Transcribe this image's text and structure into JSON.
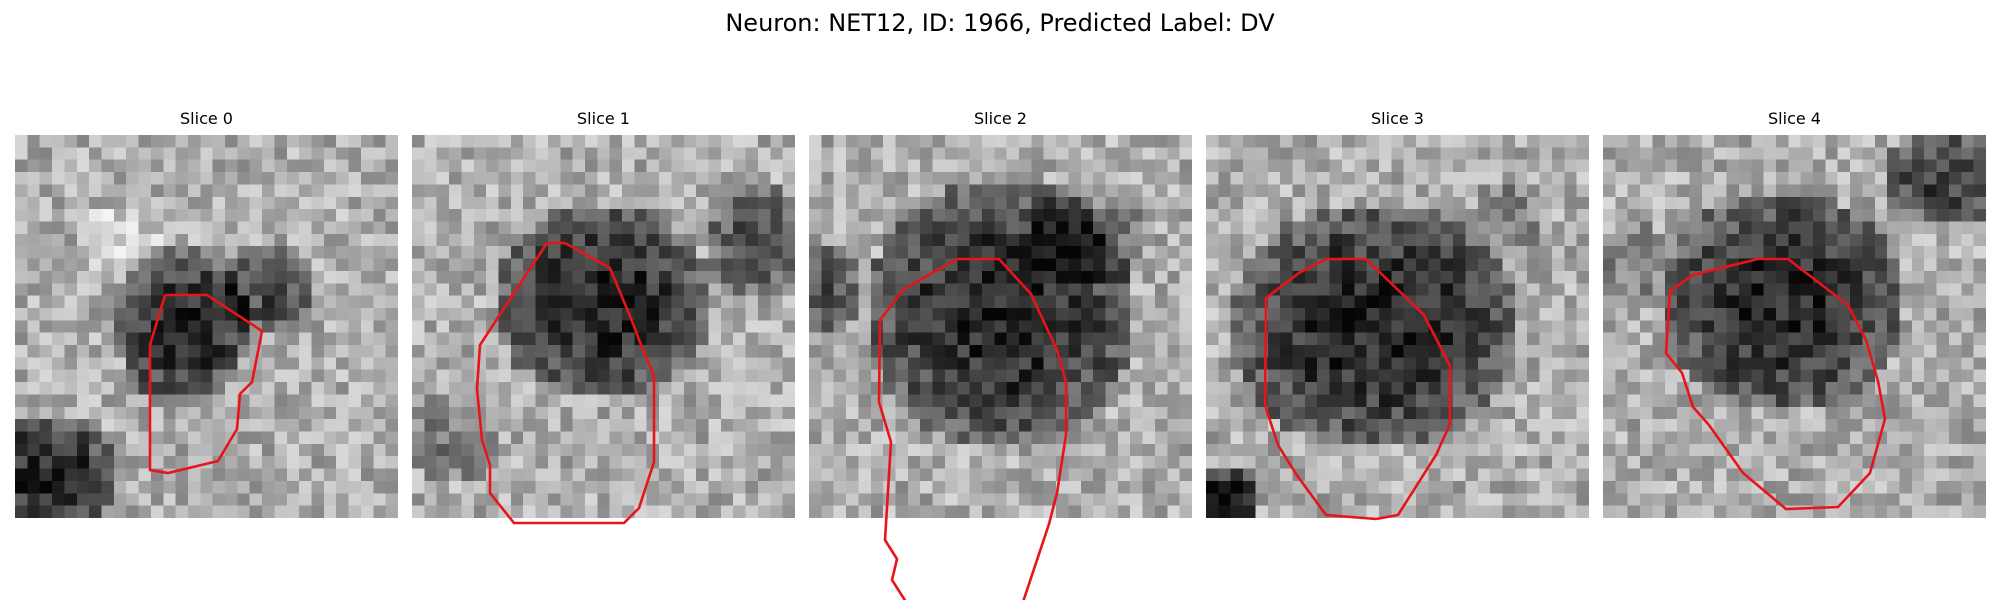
{
  "figure": {
    "title": "Neuron: NET12, ID: 1966, Predicted Label: DV",
    "contour_color": "#e8141a"
  },
  "panels": [
    {
      "title": "Slice 0"
    },
    {
      "title": "Slice 1"
    },
    {
      "title": "Slice 2"
    },
    {
      "title": "Slice 3"
    },
    {
      "title": "Slice 4"
    }
  ]
}
